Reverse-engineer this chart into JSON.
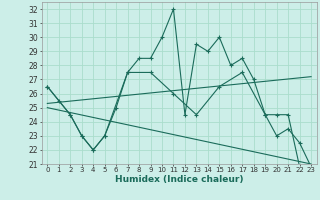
{
  "xlabel": "Humidex (Indice chaleur)",
  "xlim": [
    -0.5,
    23.5
  ],
  "ylim": [
    21,
    32.5
  ],
  "yticks": [
    21,
    22,
    23,
    24,
    25,
    26,
    27,
    28,
    29,
    30,
    31,
    32
  ],
  "xticks": [
    0,
    1,
    2,
    3,
    4,
    5,
    6,
    7,
    8,
    9,
    10,
    11,
    12,
    13,
    14,
    15,
    16,
    17,
    18,
    19,
    20,
    21,
    22,
    23
  ],
  "bg_color": "#cceee8",
  "line_color": "#1a6b5a",
  "grid_color": "#aaddcc",
  "series1_x": [
    0,
    1,
    2,
    3,
    4,
    5,
    6,
    7,
    8,
    9,
    10,
    11,
    12,
    13,
    14,
    15,
    16,
    17,
    18,
    19,
    20,
    21,
    22,
    23
  ],
  "series1_y": [
    26.5,
    25.5,
    24.5,
    23.0,
    22.0,
    23.0,
    25.0,
    27.5,
    28.5,
    28.5,
    30.0,
    32.0,
    24.5,
    29.5,
    29.0,
    30.0,
    28.0,
    28.5,
    27.0,
    24.5,
    23.0,
    23.5,
    22.5,
    20.8
  ],
  "series2_x": [
    0,
    2,
    3,
    4,
    5,
    7,
    9,
    11,
    13,
    15,
    17,
    19,
    20,
    21,
    22,
    23
  ],
  "series2_y": [
    26.5,
    24.5,
    23.0,
    22.0,
    23.0,
    27.5,
    27.5,
    26.0,
    24.5,
    26.5,
    27.5,
    24.5,
    24.5,
    24.5,
    20.8,
    20.8
  ],
  "trend1_x": [
    0,
    23
  ],
  "trend1_y": [
    25.3,
    27.2
  ],
  "trend2_x": [
    0,
    23
  ],
  "trend2_y": [
    25.0,
    21.0
  ]
}
